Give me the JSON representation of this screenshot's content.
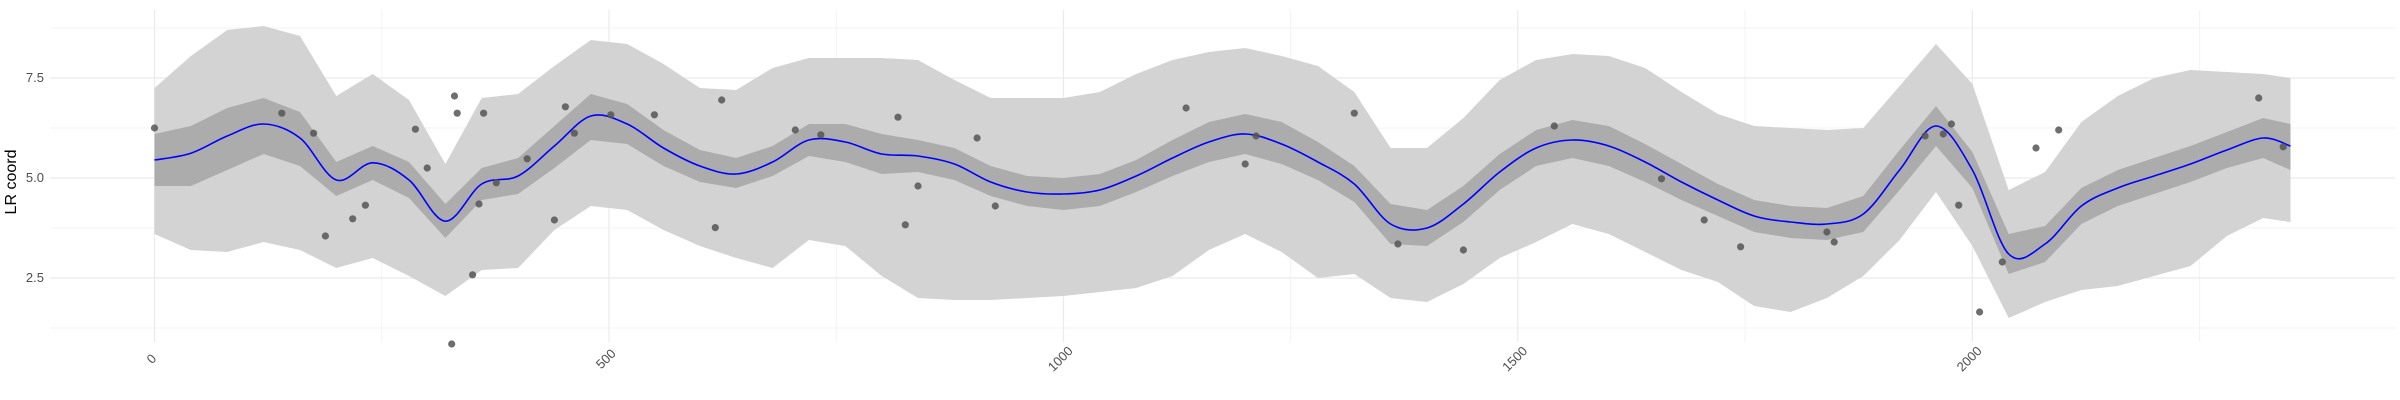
{
  "chart_data": {
    "type": "scatter",
    "title": "",
    "xlabel": "",
    "ylabel": "LR coord",
    "xlim": [
      -115,
      2465
    ],
    "ylim": [
      0.9,
      9.2
    ],
    "x_ticks": [
      0,
      500,
      1000,
      1500,
      2000
    ],
    "x_tick_labels": [
      "0",
      "500",
      "1000",
      "1500",
      "2000"
    ],
    "y_ticks": [
      2.5,
      5.0,
      7.5
    ],
    "y_tick_labels": [
      "2.5",
      "5.0",
      "7.5"
    ],
    "grid": true,
    "legend": "none",
    "colors": {
      "outer_band": "#d3d3d3",
      "inner_band": "#acacac",
      "line": "#0000ff",
      "points": "#555555",
      "grid": "#ebebeb"
    },
    "series": [
      {
        "kind": "trend_line",
        "x": [
          0,
          40,
          80,
          120,
          160,
          200,
          240,
          280,
          320,
          360,
          400,
          440,
          480,
          520,
          560,
          600,
          640,
          680,
          720,
          760,
          800,
          840,
          880,
          920,
          960,
          1000,
          1040,
          1080,
          1120,
          1160,
          1200,
          1240,
          1280,
          1320,
          1360,
          1400,
          1440,
          1480,
          1520,
          1560,
          1600,
          1640,
          1680,
          1720,
          1760,
          1800,
          1840,
          1880,
          1920,
          1960,
          2000,
          2040,
          2080,
          2120,
          2160,
          2200,
          2240,
          2280,
          2320,
          2350
        ],
        "y": [
          5.45,
          5.62,
          6.05,
          6.35,
          6.0,
          4.95,
          5.38,
          4.95,
          3.92,
          4.85,
          5.05,
          5.8,
          6.55,
          6.35,
          5.75,
          5.3,
          5.1,
          5.4,
          5.95,
          5.9,
          5.6,
          5.55,
          5.35,
          4.9,
          4.65,
          4.6,
          4.7,
          5.05,
          5.5,
          5.9,
          6.1,
          5.85,
          5.4,
          4.85,
          3.85,
          3.75,
          4.35,
          5.15,
          5.75,
          5.95,
          5.8,
          5.4,
          4.9,
          4.45,
          4.05,
          3.9,
          3.85,
          4.1,
          5.2,
          6.3,
          5.2,
          3.1,
          3.35,
          4.3,
          4.75,
          5.05,
          5.35,
          5.7,
          6.0,
          5.8
        ]
      },
      {
        "kind": "inner_band",
        "x": [
          0,
          40,
          80,
          120,
          160,
          200,
          240,
          280,
          320,
          360,
          400,
          440,
          480,
          520,
          560,
          600,
          640,
          680,
          720,
          760,
          800,
          840,
          880,
          920,
          960,
          1000,
          1040,
          1080,
          1120,
          1160,
          1200,
          1240,
          1280,
          1320,
          1360,
          1400,
          1440,
          1480,
          1520,
          1560,
          1600,
          1640,
          1680,
          1720,
          1760,
          1800,
          1840,
          1880,
          1920,
          1960,
          2000,
          2040,
          2080,
          2120,
          2160,
          2200,
          2240,
          2280,
          2320,
          2350
        ],
        "lower": [
          4.8,
          4.8,
          5.2,
          5.6,
          5.3,
          4.55,
          4.95,
          4.5,
          3.5,
          4.45,
          4.6,
          5.25,
          5.95,
          5.85,
          5.3,
          4.9,
          4.75,
          5.05,
          5.55,
          5.4,
          5.1,
          5.15,
          4.95,
          4.55,
          4.3,
          4.2,
          4.3,
          4.65,
          5.05,
          5.4,
          5.6,
          5.35,
          4.95,
          4.4,
          3.35,
          3.3,
          3.9,
          4.7,
          5.3,
          5.5,
          5.3,
          4.9,
          4.45,
          4.05,
          3.65,
          3.5,
          3.45,
          3.65,
          4.7,
          5.8,
          4.75,
          2.6,
          2.9,
          3.85,
          4.3,
          4.6,
          4.9,
          5.25,
          5.5,
          5.2
        ],
        "upper": [
          6.1,
          6.3,
          6.75,
          7.0,
          6.65,
          5.4,
          5.8,
          5.4,
          4.35,
          5.25,
          5.5,
          6.3,
          7.1,
          6.85,
          6.2,
          5.7,
          5.5,
          5.8,
          6.35,
          6.35,
          6.1,
          5.95,
          5.75,
          5.3,
          5.05,
          5.0,
          5.1,
          5.45,
          5.95,
          6.4,
          6.6,
          6.4,
          5.9,
          5.3,
          4.35,
          4.2,
          4.8,
          5.6,
          6.2,
          6.45,
          6.3,
          5.85,
          5.35,
          4.85,
          4.45,
          4.3,
          4.25,
          4.55,
          5.7,
          6.8,
          5.65,
          3.6,
          3.8,
          4.75,
          5.2,
          5.5,
          5.8,
          6.15,
          6.5,
          6.35
        ]
      },
      {
        "kind": "outer_band",
        "x": [
          0,
          40,
          80,
          120,
          160,
          200,
          240,
          280,
          320,
          360,
          400,
          440,
          480,
          520,
          560,
          600,
          640,
          680,
          720,
          760,
          800,
          840,
          880,
          920,
          960,
          1000,
          1040,
          1080,
          1120,
          1160,
          1200,
          1240,
          1280,
          1320,
          1360,
          1400,
          1440,
          1480,
          1520,
          1560,
          1600,
          1640,
          1680,
          1720,
          1760,
          1800,
          1840,
          1880,
          1920,
          1960,
          2000,
          2040,
          2080,
          2120,
          2160,
          2200,
          2240,
          2280,
          2320,
          2350
        ],
        "lower": [
          3.6,
          3.2,
          3.15,
          3.4,
          3.2,
          2.75,
          3.0,
          2.55,
          2.05,
          2.7,
          2.75,
          3.7,
          4.3,
          4.2,
          3.7,
          3.3,
          3.0,
          2.75,
          3.45,
          3.3,
          2.55,
          2.0,
          1.95,
          1.95,
          2.0,
          2.05,
          2.15,
          2.25,
          2.55,
          3.2,
          3.6,
          3.15,
          2.5,
          2.6,
          2.0,
          1.9,
          2.35,
          3.0,
          3.4,
          3.85,
          3.6,
          3.15,
          2.7,
          2.4,
          1.8,
          1.65,
          2.0,
          2.55,
          3.45,
          4.65,
          3.3,
          1.5,
          1.9,
          2.2,
          2.3,
          2.55,
          2.8,
          3.55,
          4.0,
          3.9
        ],
        "upper": [
          7.25,
          8.05,
          8.7,
          8.8,
          8.55,
          7.05,
          7.6,
          6.95,
          5.35,
          7.0,
          7.1,
          7.8,
          8.45,
          8.35,
          7.85,
          7.25,
          7.2,
          7.75,
          8.0,
          8.0,
          8.0,
          7.95,
          7.45,
          7.0,
          7.0,
          7.0,
          7.15,
          7.6,
          7.95,
          8.15,
          8.25,
          8.05,
          7.8,
          7.15,
          5.75,
          5.75,
          6.5,
          7.45,
          7.95,
          8.1,
          8.05,
          7.75,
          7.15,
          6.6,
          6.3,
          6.25,
          6.2,
          6.25,
          7.3,
          8.35,
          7.35,
          4.7,
          5.15,
          6.4,
          7.05,
          7.5,
          7.7,
          7.65,
          7.6,
          7.5
        ]
      },
      {
        "kind": "points",
        "x": [
          0,
          140,
          175,
          188,
          218,
          232,
          287,
          300,
          327,
          330,
          333,
          350,
          357,
          362,
          376,
          410,
          440,
          452,
          462,
          502,
          550,
          617,
          624,
          705,
          733,
          818,
          826,
          840,
          905,
          925,
          1135,
          1200,
          1212,
          1320,
          1368,
          1440,
          1540,
          1658,
          1705,
          1745,
          1840,
          1848,
          1948,
          1968,
          1977,
          1985,
          2008,
          2033,
          2070,
          2095,
          2315,
          2342
        ],
        "y": [
          6.25,
          6.62,
          6.12,
          3.55,
          3.98,
          4.32,
          6.22,
          5.25,
          0.85,
          7.05,
          6.62,
          2.58,
          4.35,
          6.62,
          4.88,
          5.48,
          3.95,
          6.78,
          6.12,
          6.58,
          6.58,
          3.76,
          6.95,
          6.2,
          6.08,
          6.52,
          3.83,
          4.8,
          6.0,
          4.3,
          6.75,
          5.35,
          6.05,
          6.62,
          3.35,
          3.2,
          6.3,
          4.98,
          3.95,
          3.28,
          3.65,
          3.4,
          6.05,
          6.1,
          6.35,
          4.32,
          1.65,
          2.9,
          5.75,
          6.2,
          7.0,
          5.78
        ]
      }
    ]
  }
}
